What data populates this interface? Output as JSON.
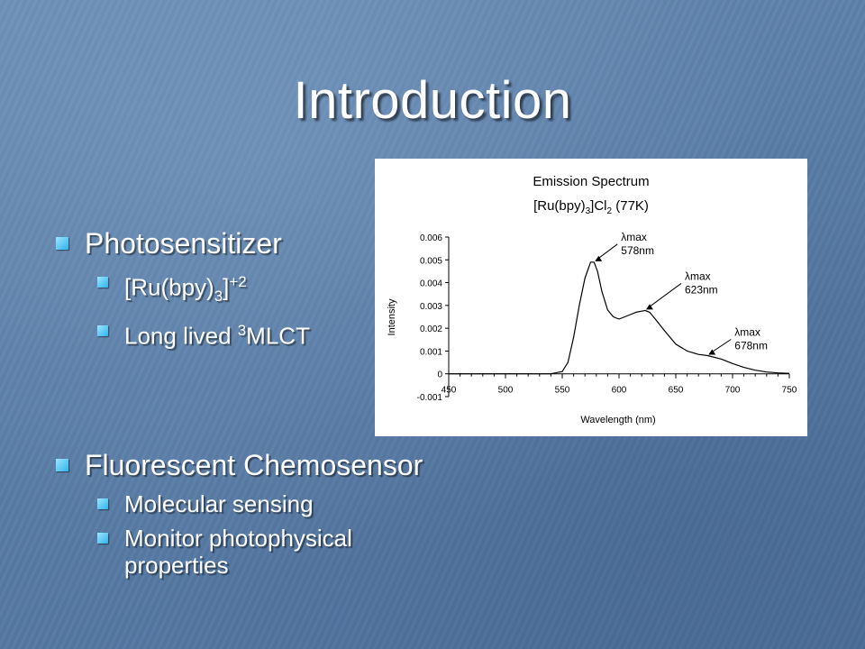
{
  "slide": {
    "title": "Introduction",
    "section1": {
      "heading": "Photosensitizer",
      "items": [
        {
          "text": "[Ru(bpy)",
          "sub": "3",
          "tail": "]",
          "sup": "+2"
        },
        {
          "text": "Long lived ",
          "sup": "3",
          "tail": "MLCT"
        }
      ]
    },
    "section2": {
      "heading": "Fluorescent Chemosensor",
      "items": [
        "Molecular sensing",
        "Monitor photophysical properties"
      ]
    }
  },
  "colors": {
    "bullet": "#3cc0f0",
    "text": "#ffffff"
  },
  "chart_data": {
    "type": "line",
    "title_line1": "Emission Spectrum",
    "title_line2": {
      "a": "[Ru(bpy)",
      "sub": "3",
      "b": "]Cl",
      "sub2": "2",
      "c": "  (77K)"
    },
    "xlabel": "Wavelength (nm)",
    "ylabel": "Intensity",
    "xlim": [
      450,
      750
    ],
    "ylim": [
      -0.001,
      0.006
    ],
    "xticks": [
      "450",
      "500",
      "550",
      "600",
      "650",
      "700",
      "750"
    ],
    "yticks": [
      "-0.001",
      "0",
      "0.001",
      "0.002",
      "0.003",
      "0.004",
      "0.005",
      "0.006"
    ],
    "series": [
      {
        "x": [
          450,
          540,
          550,
          555,
          560,
          565,
          570,
          575,
          578,
          581,
          585,
          590,
          595,
          600,
          605,
          610,
          615,
          620,
          623,
          627,
          632,
          640,
          650,
          660,
          670,
          678,
          690,
          700,
          710,
          720,
          730,
          740,
          750
        ],
        "y": [
          0,
          0,
          0.0001,
          0.0005,
          0.0016,
          0.003,
          0.0042,
          0.0049,
          0.0049,
          0.0045,
          0.0036,
          0.0028,
          0.0025,
          0.0024,
          0.0025,
          0.0026,
          0.0027,
          0.00275,
          0.00278,
          0.0027,
          0.0024,
          0.0019,
          0.0013,
          0.001,
          0.00085,
          0.0008,
          0.00065,
          0.00045,
          0.00028,
          0.00016,
          8e-05,
          4e-05,
          2e-05
        ]
      }
    ],
    "annotations": [
      {
        "line1": "λmax",
        "line2": "578nm",
        "x": 578,
        "y": 0.0049
      },
      {
        "line1": "λmax",
        "line2": "623nm",
        "x": 623,
        "y": 0.00278
      },
      {
        "line1": "λmax",
        "line2": "678nm",
        "x": 678,
        "y": 0.0008
      }
    ]
  }
}
